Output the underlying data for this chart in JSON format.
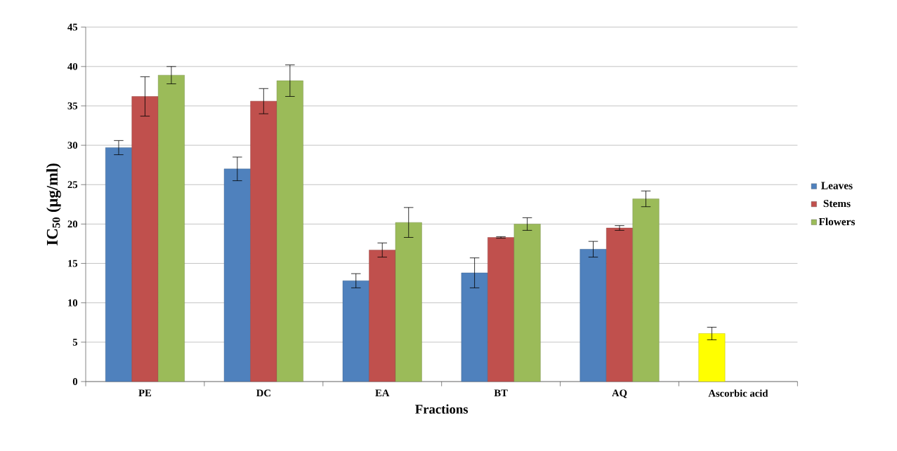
{
  "chart_data": {
    "type": "bar",
    "xlabel": "Fractions",
    "ylabel": "IC$_{50}$ (µg/ml)",
    "categories": [
      "PE",
      "DC",
      "EA",
      "BT",
      "AQ",
      "Ascorbic acid"
    ],
    "series": [
      {
        "name": "Leaves",
        "color": "#4f81bd",
        "colors": [
          "#4f81bd",
          "#4f81bd",
          "#4f81bd",
          "#4f81bd",
          "#4f81bd",
          "#ffff00"
        ],
        "values": [
          29.7,
          27.0,
          12.8,
          13.8,
          16.8,
          6.1
        ],
        "errors": [
          0.9,
          1.5,
          0.9,
          1.9,
          1.0,
          0.8
        ]
      },
      {
        "name": "Stems",
        "color": "#c0504d",
        "values": [
          36.2,
          35.6,
          16.7,
          18.3,
          19.5,
          null
        ],
        "errors": [
          2.5,
          1.6,
          0.9,
          0.1,
          0.3,
          null
        ]
      },
      {
        "name": "Flowers",
        "color": "#9bbb59",
        "values": [
          38.9,
          38.2,
          20.2,
          20.0,
          23.2,
          null
        ],
        "errors": [
          1.1,
          2.0,
          1.9,
          0.8,
          1.0,
          null
        ]
      }
    ],
    "ylim": [
      0,
      45
    ],
    "yticks": [
      0,
      5,
      10,
      15,
      20,
      25,
      30,
      35,
      40,
      45
    ],
    "grid": "y",
    "legend": "right"
  }
}
